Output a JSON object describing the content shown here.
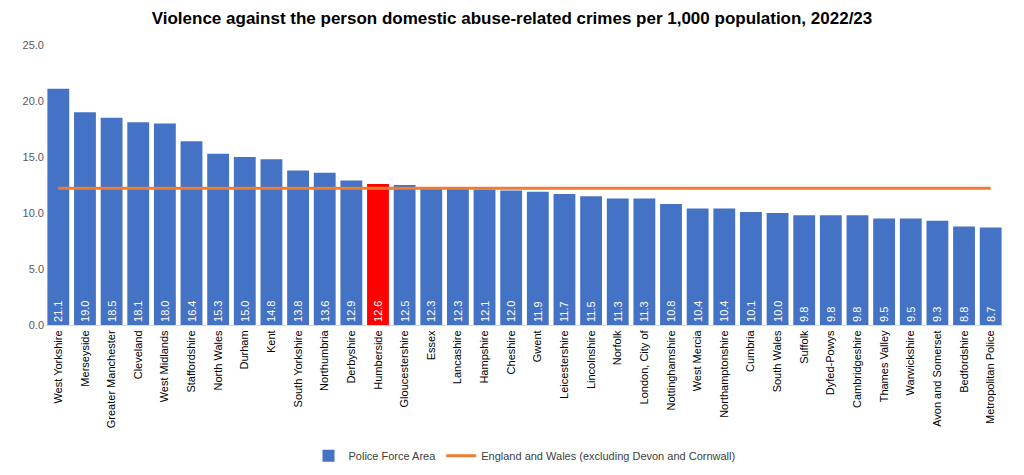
{
  "chart_data": {
    "type": "bar",
    "title": "Violence against the person domestic abuse-related crimes per 1,000 population, 2022/23",
    "categories": [
      "West Yorkshire",
      "Merseyside",
      "Greater Manchester",
      "Cleveland",
      "West Midlands",
      "Staffordshire",
      "North Wales",
      "Durham",
      "Kent",
      "South Yorkshire",
      "Northumbria",
      "Derbyshire",
      "Humberside",
      "Gloucestershire",
      "Essex",
      "Lancashire",
      "Hampshire",
      "Cheshire",
      "Gwent",
      "Leicestershire",
      "Lincolnshire",
      "Norfolk",
      "London, City of",
      "Nottinghamshire",
      "West Mercia",
      "Northamptonshire",
      "Cumbria",
      "South Wales",
      "Suffolk",
      "Dyfed-Powys",
      "Cambridgeshire",
      "Thames Valley",
      "Warwickshire",
      "Avon and Somerset",
      "Bedfordshire",
      "Metropolitan Police"
    ],
    "series": [
      {
        "name": "Police Force Area",
        "type": "bar",
        "color": "#4472c4",
        "colors": [
          "#4472c4",
          "#4472c4",
          "#4472c4",
          "#4472c4",
          "#4472c4",
          "#4472c4",
          "#4472c4",
          "#4472c4",
          "#4472c4",
          "#4472c4",
          "#4472c4",
          "#4472c4",
          "#ff0000",
          "#4472c4",
          "#4472c4",
          "#4472c4",
          "#4472c4",
          "#4472c4",
          "#4472c4",
          "#4472c4",
          "#4472c4",
          "#4472c4",
          "#4472c4",
          "#4472c4",
          "#4472c4",
          "#4472c4",
          "#4472c4",
          "#4472c4",
          "#4472c4",
          "#4472c4",
          "#4472c4",
          "#4472c4",
          "#4472c4",
          "#4472c4",
          "#4472c4",
          "#4472c4"
        ],
        "values": [
          21.1,
          19.0,
          18.5,
          18.1,
          18.0,
          16.4,
          15.3,
          15.0,
          14.8,
          13.8,
          13.6,
          12.9,
          12.6,
          12.5,
          12.3,
          12.3,
          12.1,
          12.0,
          11.9,
          11.7,
          11.5,
          11.3,
          11.3,
          10.8,
          10.4,
          10.4,
          10.1,
          10.0,
          9.8,
          9.8,
          9.8,
          9.5,
          9.5,
          9.3,
          8.8,
          8.7
        ],
        "value_labels": [
          "21.1",
          "19.0",
          "18.5",
          "18.1",
          "18.0",
          "16.4",
          "15.3",
          "15.0",
          "14.8",
          "13.8",
          "13.6",
          "12.9",
          "12.6",
          "12.5",
          "12.3",
          "12.3",
          "12.1",
          "12.0",
          "11.9",
          "11.7",
          "11.5",
          "11.3",
          "11.3",
          "10.8",
          "10.4",
          "10.4",
          "10.1",
          "10.0",
          "9.8",
          "9.8",
          "9.8",
          "9.5",
          "9.5",
          "9.3",
          "8.8",
          "8.7"
        ]
      },
      {
        "name": "England and Wales (excluding Devon and Cornwall)",
        "type": "line",
        "color": "#ed7d31",
        "values": [
          12.2,
          12.2,
          12.2,
          12.2,
          12.2,
          12.2,
          12.2,
          12.2,
          12.2,
          12.2,
          12.2,
          12.2,
          12.2,
          12.2,
          12.2,
          12.2,
          12.2,
          12.2,
          12.2,
          12.2,
          12.2,
          12.2,
          12.2,
          12.2,
          12.2,
          12.2,
          12.2,
          12.2,
          12.2,
          12.2,
          12.2,
          12.2,
          12.2,
          12.2,
          12.2,
          12.2
        ]
      }
    ],
    "ylim": [
      0,
      25
    ],
    "yticks": [
      {
        "value": 0,
        "label": "0.0"
      },
      {
        "value": 5,
        "label": "5.0"
      },
      {
        "value": 10,
        "label": "10.0"
      },
      {
        "value": 15,
        "label": "15.0"
      },
      {
        "value": 20,
        "label": "20.0"
      },
      {
        "value": 25,
        "label": "25.0"
      }
    ],
    "grid": false,
    "legend": "bottom",
    "data_labels": true
  }
}
